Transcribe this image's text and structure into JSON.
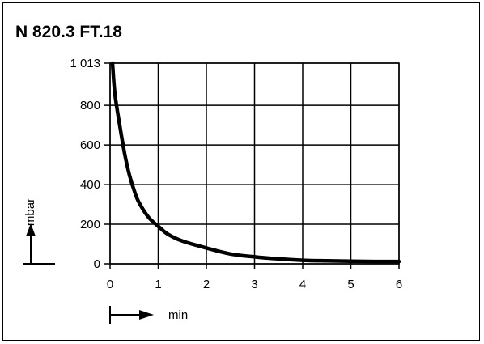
{
  "chart_data": {
    "type": "line",
    "title": "N 820.3 FT.18",
    "xlabel": "min",
    "ylabel": "mbar",
    "xlim": [
      0,
      6
    ],
    "ylim": [
      0,
      1013
    ],
    "x_ticks": [
      "0",
      "1",
      "2",
      "3",
      "4",
      "5",
      "6"
    ],
    "y_ticks": [
      {
        "value": 0,
        "label": "0"
      },
      {
        "value": 200,
        "label": "200"
      },
      {
        "value": 400,
        "label": "400"
      },
      {
        "value": 600,
        "label": "600"
      },
      {
        "value": 800,
        "label": "800"
      },
      {
        "value": 1013,
        "label": "1 013"
      }
    ],
    "grid": true,
    "series": [
      {
        "x": [
          0.05,
          0.1,
          0.2,
          0.3,
          0.4,
          0.5,
          0.6,
          0.8,
          1.0,
          1.2,
          1.5,
          2.0,
          2.5,
          3.0,
          3.5,
          4.0,
          4.5,
          5.0,
          5.5,
          6.0
        ],
        "y": [
          1013,
          860,
          700,
          560,
          450,
          370,
          310,
          235,
          190,
          150,
          115,
          80,
          50,
          35,
          25,
          18,
          15,
          13,
          12,
          12
        ]
      }
    ],
    "line_color": "#000000"
  }
}
